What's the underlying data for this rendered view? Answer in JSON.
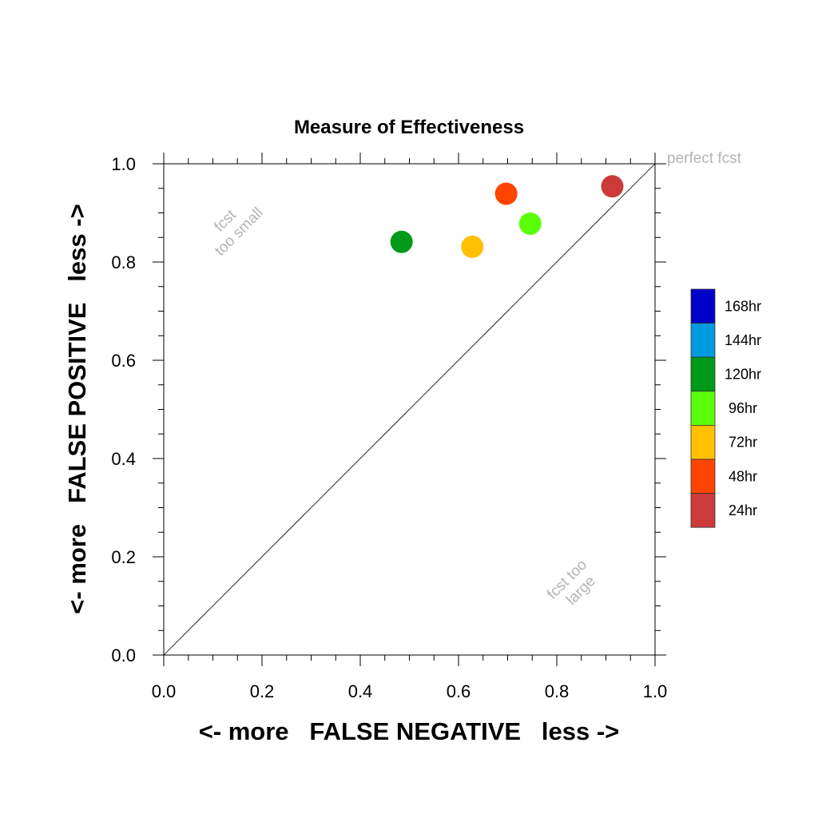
{
  "chart_data": {
    "type": "scatter",
    "title": "Measure of Effectiveness",
    "xlabel": "<- more   FALSE NEGATIVE   less ->",
    "ylabel": "<- more   FALSE POSITIVE   less ->",
    "xlim": [
      0.0,
      1.0
    ],
    "ylim": [
      0.0,
      1.0
    ],
    "x_ticks": [
      "0.0",
      "0.2",
      "0.4",
      "0.6",
      "0.8",
      "1.0"
    ],
    "y_ticks": [
      "0.0",
      "0.2",
      "0.4",
      "0.6",
      "0.8",
      "1.0"
    ],
    "grid": false,
    "reference_line": "diagonal y = x",
    "annotations": {
      "upper_left": [
        "fcst",
        "too small"
      ],
      "lower_right": [
        "fcst too",
        "large"
      ],
      "top_right": "perfect fcst"
    },
    "legend_position": "right",
    "series": [
      {
        "name": "24hr",
        "color": "#cc3a3a",
        "x": 0.913,
        "y": 0.954
      },
      {
        "name": "48hr",
        "color": "#ff4400",
        "x": 0.697,
        "y": 0.939
      },
      {
        "name": "72hr",
        "color": "#ffc000",
        "x": 0.628,
        "y": 0.831
      },
      {
        "name": "96hr",
        "color": "#5cff0a",
        "x": 0.746,
        "y": 0.878
      },
      {
        "name": "120hr",
        "color": "#009a18",
        "x": 0.484,
        "y": 0.841
      }
    ],
    "legend": [
      {
        "label": "168hr",
        "color": "#0000c8"
      },
      {
        "label": "144hr",
        "color": "#009bdf"
      },
      {
        "label": "120hr",
        "color": "#009a18"
      },
      {
        "label": "96hr",
        "color": "#5cff0a"
      },
      {
        "label": "72hr",
        "color": "#ffc000"
      },
      {
        "label": "48hr",
        "color": "#ff4400"
      },
      {
        "label": "24hr",
        "color": "#cc3a3a"
      }
    ]
  }
}
